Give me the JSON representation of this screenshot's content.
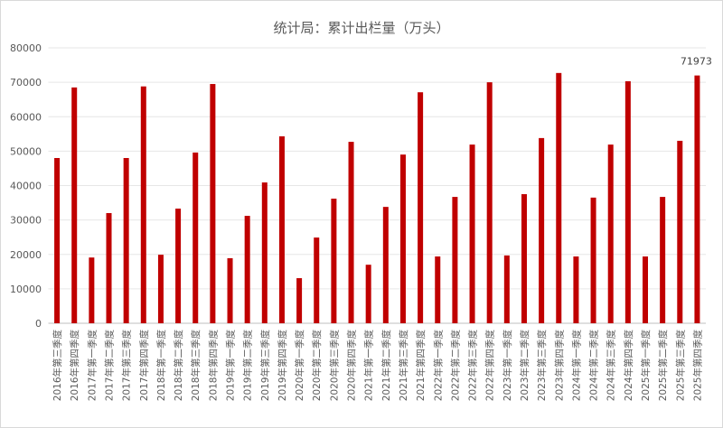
{
  "chart_data": {
    "type": "bar",
    "title": "统计局：累计出栏量（万头）",
    "xlabel": "",
    "ylabel": "",
    "ylim": [
      0,
      80000
    ],
    "yticks": [
      0,
      10000,
      20000,
      30000,
      40000,
      50000,
      60000,
      70000,
      80000
    ],
    "grid": true,
    "color": "#c00000",
    "categories": [
      "2016年第三季度",
      "2016年第四季度",
      "2017年第一季度",
      "2017年第二季度",
      "2017年第三季度",
      "2017年第四季度",
      "2018年第一季度",
      "2018年第二季度",
      "2018年第三季度",
      "2018年第四季度",
      "2019年第一季度",
      "2019年第二季度",
      "2019年第三季度",
      "2019年第四季度",
      "2020年第一季度",
      "2020年第二季度",
      "2020年第三季度",
      "2020年第四季度",
      "2021年第一季度",
      "2021年第二季度",
      "2021年第三季度",
      "2021年第四季度",
      "2022年第一季度",
      "2022年第二季度",
      "2022年第三季度",
      "2022年第四季度",
      "2023年第一季度",
      "2023年第二季度",
      "2023年第三季度",
      "2023年第四季度",
      "2024年第一季度",
      "2024年第二季度",
      "2024年第三季度",
      "2024年第四季度",
      "2025年第一季度",
      "2025年第二季度",
      "2025年第三季度",
      "2025年第四季度"
    ],
    "values": [
      48000,
      68500,
      19100,
      32000,
      48000,
      68800,
      19900,
      33300,
      49600,
      69500,
      18900,
      31200,
      40900,
      54300,
      13100,
      24900,
      36200,
      52700,
      17000,
      33800,
      49000,
      67100,
      19400,
      36700,
      51900,
      70000,
      19700,
      37500,
      53800,
      72700,
      19400,
      36500,
      51900,
      70300,
      19400,
      36700,
      53000,
      71973
    ],
    "data_labels": [
      {
        "index": 37,
        "text": "71973"
      }
    ]
  }
}
